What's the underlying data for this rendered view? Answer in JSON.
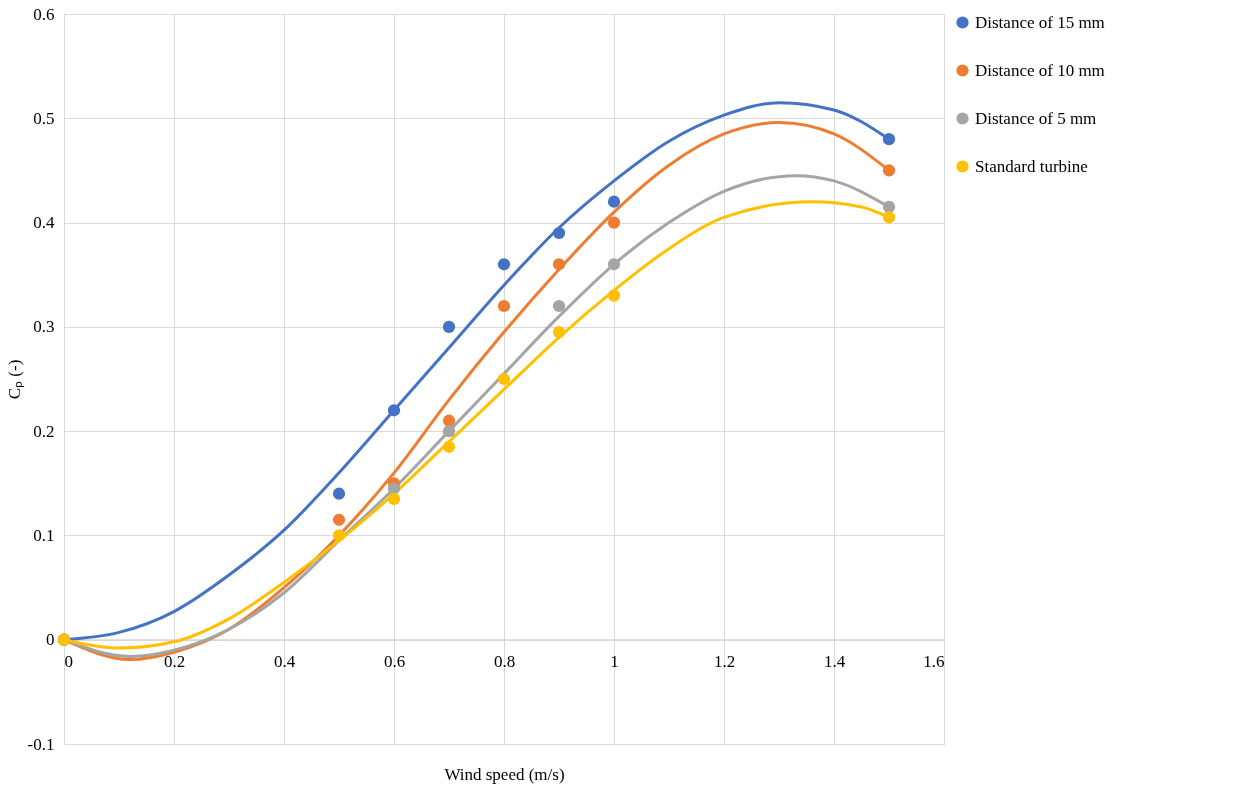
{
  "chart_data": {
    "type": "scatter",
    "xlabel": "Wind speed (m/s)",
    "ylabel": "Cₚ (-)",
    "xlim": [
      0,
      1.6
    ],
    "xticks": [
      0,
      0.2,
      0.4,
      0.6,
      0.8,
      1,
      1.2,
      1.4,
      1.6
    ],
    "ylim": [
      -0.1,
      0.6
    ],
    "yticks": [
      -0.1,
      0,
      0.1,
      0.2,
      0.3,
      0.4,
      0.5,
      0.6
    ],
    "grid": true,
    "legend": "right",
    "marker": "circle",
    "x": [
      0,
      0.5,
      0.6,
      0.7,
      0.8,
      0.9,
      1.0,
      1.5
    ],
    "series": [
      {
        "name": "Distance of 15 mm",
        "color": "#4472c4",
        "values": [
          0,
          0.14,
          0.22,
          0.3,
          0.36,
          0.39,
          0.42,
          0.48
        ]
      },
      {
        "name": "Distance of 10 mm",
        "color": "#ed7d31",
        "values": [
          0,
          0.115,
          0.15,
          0.21,
          0.32,
          0.36,
          0.4,
          0.45
        ]
      },
      {
        "name": "Distance of 5 mm",
        "color": "#a5a5a5",
        "values": [
          0,
          null,
          0.145,
          0.2,
          null,
          0.32,
          0.36,
          0.415
        ]
      },
      {
        "name": "Standard turbine",
        "color": "#ffc000",
        "values": [
          0,
          0.1,
          0.135,
          0.185,
          0.25,
          0.295,
          0.33,
          0.405
        ]
      },
      {
        "type": "line",
        "marker": "none",
        "line_style": "solid",
        "color": "#4472c4",
        "x": [
          0,
          0.1,
          0.2,
          0.3,
          0.4,
          0.5,
          0.6,
          0.7,
          0.8,
          0.9,
          1.0,
          1.1,
          1.2,
          1.3,
          1.4,
          1.5
        ],
        "values": [
          0,
          0.007,
          0.027,
          0.062,
          0.105,
          0.16,
          0.22,
          0.28,
          0.34,
          0.395,
          0.44,
          0.478,
          0.503,
          0.515,
          0.508,
          0.48
        ]
      },
      {
        "type": "line",
        "marker": "none",
        "line_style": "solid",
        "color": "#ed7d31",
        "x": [
          0,
          0.12,
          0.2,
          0.3,
          0.4,
          0.5,
          0.6,
          0.7,
          0.8,
          0.9,
          1.0,
          1.1,
          1.2,
          1.3,
          1.4,
          1.5
        ],
        "values": [
          0,
          -0.019,
          -0.012,
          0.01,
          0.05,
          0.1,
          0.16,
          0.23,
          0.295,
          0.355,
          0.41,
          0.455,
          0.485,
          0.496,
          0.485,
          0.45
        ]
      },
      {
        "type": "line",
        "marker": "none",
        "line_style": "solid",
        "color": "#a5a5a5",
        "x": [
          0,
          0.12,
          0.2,
          0.3,
          0.4,
          0.5,
          0.6,
          0.7,
          0.8,
          0.9,
          1.0,
          1.1,
          1.2,
          1.33,
          1.4,
          1.5
        ],
        "values": [
          0,
          -0.016,
          -0.01,
          0.01,
          0.045,
          0.095,
          0.145,
          0.2,
          0.255,
          0.31,
          0.36,
          0.4,
          0.43,
          0.445,
          0.44,
          0.415
        ]
      },
      {
        "type": "line",
        "marker": "none",
        "line_style": "solid",
        "color": "#ffc000",
        "x": [
          0,
          0.1,
          0.2,
          0.3,
          0.4,
          0.5,
          0.6,
          0.7,
          0.8,
          0.9,
          1.0,
          1.1,
          1.2,
          1.36,
          1.45,
          1.5
        ],
        "values": [
          0,
          -0.008,
          -0.002,
          0.02,
          0.055,
          0.095,
          0.14,
          0.19,
          0.24,
          0.29,
          0.335,
          0.375,
          0.405,
          0.42,
          0.415,
          0.405
        ]
      }
    ]
  }
}
